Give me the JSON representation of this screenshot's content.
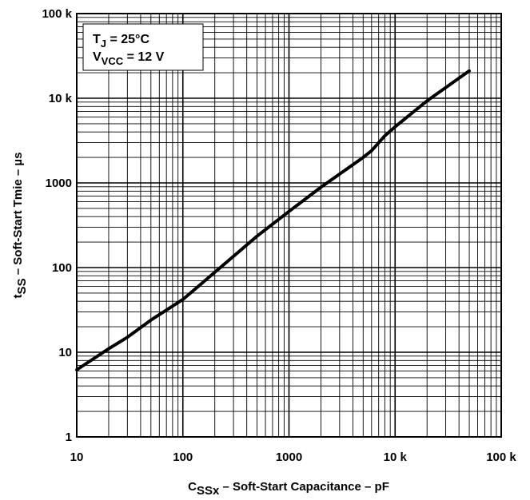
{
  "chart_data": {
    "type": "line",
    "x_scale": "log",
    "y_scale": "log",
    "xlim": [
      10,
      100000
    ],
    "ylim": [
      1,
      100000
    ],
    "grid": true,
    "xlabel": {
      "main": "C",
      "sub": "SSx",
      "rest": " – Soft-Start Capacitance – pF"
    },
    "ylabel": {
      "main": "t",
      "sub": "SS",
      "rest": " – Soft-Start Tmie – µs"
    },
    "x_ticks": [
      {
        "value": 10,
        "label": "10"
      },
      {
        "value": 100,
        "label": "100"
      },
      {
        "value": 1000,
        "label": "1000"
      },
      {
        "value": 10000,
        "label": "10 k"
      },
      {
        "value": 100000,
        "label": "100 k"
      }
    ],
    "y_ticks": [
      {
        "value": 1,
        "label": "1"
      },
      {
        "value": 10,
        "label": "10"
      },
      {
        "value": 100,
        "label": "100"
      },
      {
        "value": 1000,
        "label": "1000"
      },
      {
        "value": 10000,
        "label": "10 k"
      },
      {
        "value": 100000,
        "label": "100 k"
      }
    ],
    "annotations": [
      {
        "main": "T",
        "sub": "J",
        "rest": " = 25°C"
      },
      {
        "main": "V",
        "sub": "VCC",
        "rest": " = 12 V"
      }
    ],
    "series": [
      {
        "x": [
          10,
          20,
          30,
          50,
          100,
          200,
          500,
          1000,
          2000,
          5000,
          6000,
          8000,
          10000,
          20000,
          50000
        ],
        "y": [
          6.2,
          11,
          15,
          24,
          42,
          88,
          235,
          460,
          890,
          2000,
          2400,
          3600,
          4600,
          9300,
          21000
        ]
      }
    ]
  }
}
